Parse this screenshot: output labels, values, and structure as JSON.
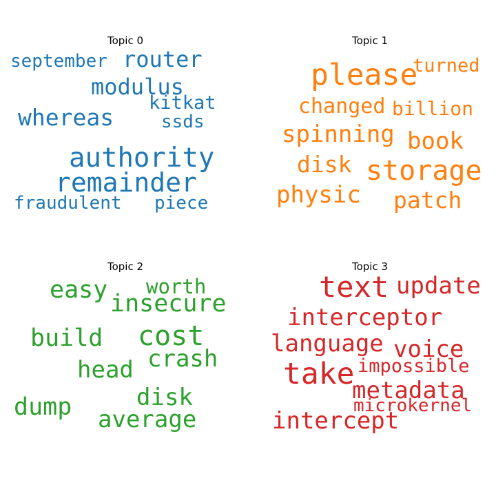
{
  "colors": {
    "topic0": "#1f77b4",
    "topic1": "#ff7f0e",
    "topic2": "#2ca02c",
    "topic3": "#d62728"
  },
  "topics": [
    {
      "title": "Topic 0",
      "words": [
        "september",
        "router",
        "modulus",
        "kitkat",
        "whereas",
        "ssds",
        "authority",
        "remainder",
        "fraudulent",
        "piece"
      ]
    },
    {
      "title": "Topic 1",
      "words": [
        "please",
        "turned",
        "changed",
        "billion",
        "spinning",
        "book",
        "disk",
        "storage",
        "physic",
        "patch"
      ]
    },
    {
      "title": "Topic 2",
      "words": [
        "easy",
        "worth",
        "insecure",
        "cost",
        "build",
        "crash",
        "head",
        "disk",
        "dump",
        "average"
      ]
    },
    {
      "title": "Topic 3",
      "words": [
        "text",
        "update",
        "interceptor",
        "language",
        "voice",
        "impossible",
        "take",
        "metadata",
        "microkernel",
        "intercept"
      ]
    }
  ]
}
